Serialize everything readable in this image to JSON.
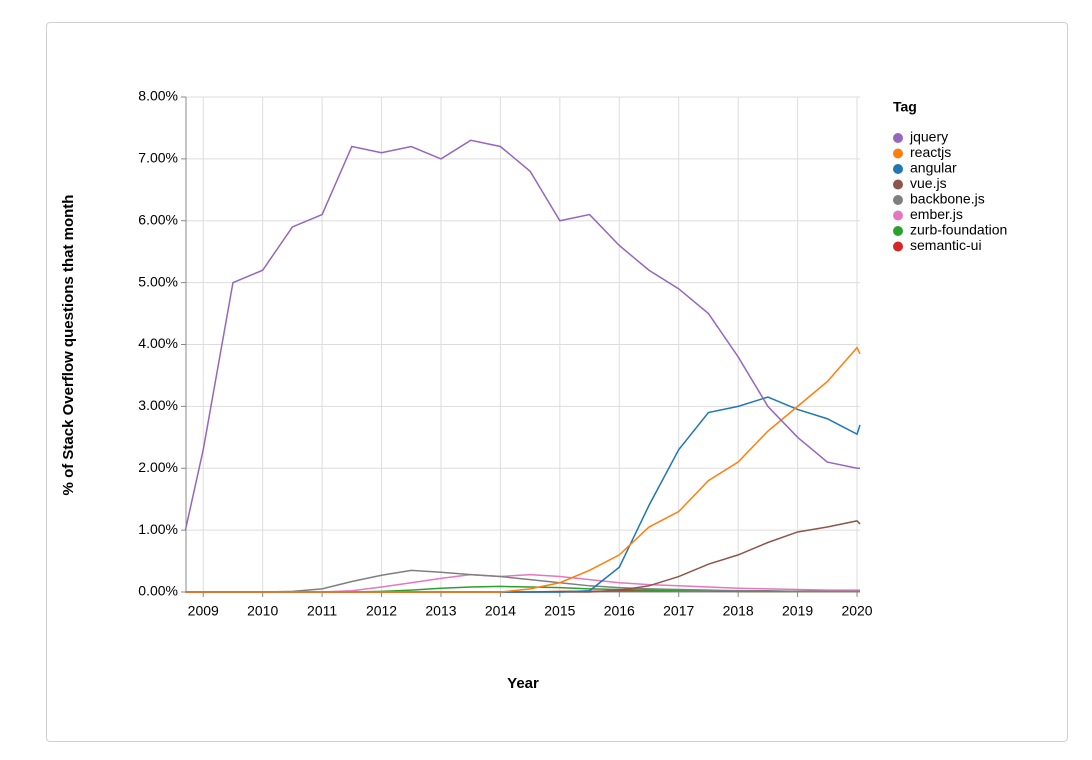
{
  "chart_data": {
    "type": "line",
    "x_label": "Year",
    "y_label": "% of Stack Overflow questions that month",
    "legend_title": "Tag",
    "legend_position": "right",
    "grid": true,
    "x": [
      2008.7,
      2009,
      2009.5,
      2010,
      2010.5,
      2011,
      2011.5,
      2012,
      2012.5,
      2013,
      2013.5,
      2014,
      2014.5,
      2015,
      2015.5,
      2016,
      2016.5,
      2017,
      2017.5,
      2018,
      2018.5,
      2019,
      2019.5,
      2020,
      2020.05
    ],
    "xlim": [
      2008.71,
      2020.05
    ],
    "xticks": [
      2009,
      2010,
      2011,
      2012,
      2013,
      2014,
      2015,
      2016,
      2017,
      2018,
      2019,
      2020
    ],
    "ylim": [
      0,
      8
    ],
    "yticks": [
      {
        "value": 0,
        "label": "0.00%"
      },
      {
        "value": 1,
        "label": "1.00%"
      },
      {
        "value": 2,
        "label": "2.00%"
      },
      {
        "value": 3,
        "label": "3.00%"
      },
      {
        "value": 4,
        "label": "4.00%"
      },
      {
        "value": 5,
        "label": "5.00%"
      },
      {
        "value": 6,
        "label": "6.00%"
      },
      {
        "value": 7,
        "label": "7.00%"
      },
      {
        "value": 8,
        "label": "8.00%"
      }
    ],
    "series": [
      {
        "name": "jquery",
        "color": "#9467bd",
        "values": [
          1.0,
          2.3,
          5.0,
          5.2,
          5.9,
          6.1,
          7.2,
          7.1,
          7.2,
          7.0,
          7.3,
          7.2,
          6.8,
          6.0,
          6.1,
          5.6,
          5.2,
          4.9,
          4.5,
          3.8,
          3.0,
          2.5,
          2.1,
          2.0,
          2.0
        ]
      },
      {
        "name": "reactjs",
        "color": "#ff7f0e",
        "values": [
          0,
          0,
          0,
          0,
          0,
          0,
          0,
          0,
          0,
          0,
          0,
          0,
          0.05,
          0.15,
          0.35,
          0.6,
          1.05,
          1.3,
          1.8,
          2.1,
          2.6,
          3.0,
          3.4,
          3.95,
          3.85
        ]
      },
      {
        "name": "angular",
        "color": "#1f77b4",
        "values": [
          0,
          0,
          0,
          0,
          0,
          0,
          0,
          0,
          0,
          0,
          0,
          0,
          0,
          0,
          0.02,
          0.4,
          1.4,
          2.3,
          2.9,
          3.0,
          3.15,
          2.95,
          2.8,
          2.55,
          2.7
        ]
      },
      {
        "name": "vue.js",
        "color": "#8c564b",
        "values": [
          0,
          0,
          0,
          0,
          0,
          0,
          0,
          0,
          0,
          0,
          0,
          0,
          0,
          0,
          0,
          0.03,
          0.1,
          0.25,
          0.45,
          0.6,
          0.8,
          0.97,
          1.05,
          1.15,
          1.1
        ]
      },
      {
        "name": "backbone.js",
        "color": "#7f7f7f",
        "values": [
          0,
          0,
          0,
          0,
          0.01,
          0.05,
          0.17,
          0.27,
          0.35,
          0.32,
          0.28,
          0.25,
          0.2,
          0.15,
          0.1,
          0.07,
          0.05,
          0.04,
          0.03,
          0.02,
          0.02,
          0.01,
          0.01,
          0.01,
          0.01
        ]
      },
      {
        "name": "ember.js",
        "color": "#e377c2",
        "values": [
          0,
          0,
          0,
          0,
          0,
          0,
          0.02,
          0.08,
          0.15,
          0.22,
          0.28,
          0.25,
          0.28,
          0.25,
          0.2,
          0.15,
          0.12,
          0.1,
          0.08,
          0.06,
          0.05,
          0.04,
          0.03,
          0.03,
          0.03
        ]
      },
      {
        "name": "zurb-foundation",
        "color": "#2ca02c",
        "values": [
          0,
          0,
          0,
          0,
          0,
          0,
          0,
          0.01,
          0.03,
          0.06,
          0.08,
          0.09,
          0.08,
          0.07,
          0.05,
          0.04,
          0.03,
          0.02,
          0.02,
          0.01,
          0.01,
          0.01,
          0.01,
          0.01,
          0.01
        ]
      },
      {
        "name": "semantic-ui",
        "color": "#d62728",
        "values": [
          0,
          0,
          0,
          0,
          0,
          0,
          0,
          0,
          0,
          0,
          0,
          0,
          0,
          0.01,
          0.01,
          0.02,
          0.02,
          0.02,
          0.02,
          0.01,
          0.01,
          0.01,
          0.01,
          0.01,
          0.01
        ]
      }
    ]
  }
}
